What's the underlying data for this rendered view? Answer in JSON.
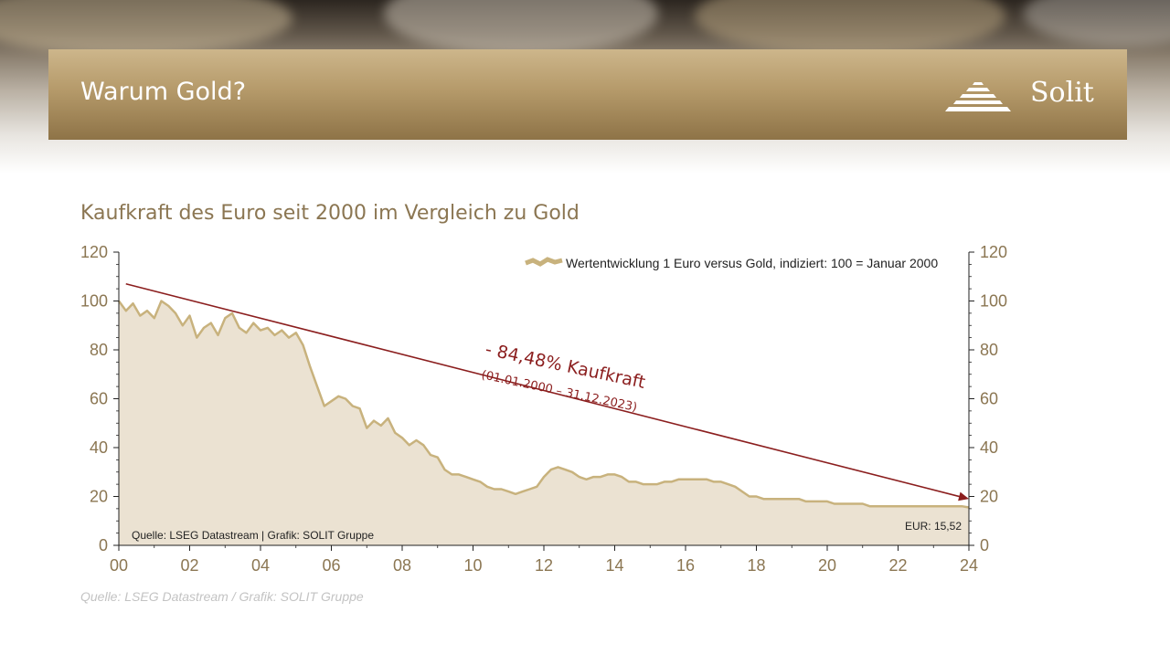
{
  "header": {
    "title": "Warum Gold?",
    "logo_text": "Solit",
    "accent": "#b59a6a"
  },
  "subtitle": "Kaufkraft des Euro seit 2000 im Vergleich zu Gold",
  "footer": {
    "source": "Quelle: LSEG Datastream / Grafik: SOLIT Gruppe"
  },
  "chart_data": {
    "type": "area",
    "legend": "Wertentwicklung 1 Euro versus Gold, indiziert: 100 = Januar 2000",
    "legend_position": "top-right",
    "xlim": [
      0,
      24
    ],
    "ylim": [
      0,
      120
    ],
    "xticks": [
      "00",
      "02",
      "04",
      "06",
      "08",
      "10",
      "12",
      "14",
      "16",
      "18",
      "20",
      "22",
      "24"
    ],
    "yticks": [
      "0",
      "20",
      "40",
      "60",
      "80",
      "100",
      "120"
    ],
    "series": [
      {
        "color": "#c8b27d",
        "fill": "#ebe2d2",
        "x": [
          0,
          0.2,
          0.4,
          0.6,
          0.8,
          1.0,
          1.2,
          1.4,
          1.6,
          1.8,
          2.0,
          2.2,
          2.4,
          2.6,
          2.8,
          3.0,
          3.2,
          3.4,
          3.6,
          3.8,
          4.0,
          4.2,
          4.4,
          4.6,
          4.8,
          5.0,
          5.2,
          5.4,
          5.6,
          5.8,
          6.0,
          6.2,
          6.4,
          6.6,
          6.8,
          7.0,
          7.2,
          7.4,
          7.6,
          7.8,
          8.0,
          8.2,
          8.4,
          8.6,
          8.8,
          9.0,
          9.2,
          9.4,
          9.6,
          9.8,
          10.0,
          10.2,
          10.4,
          10.6,
          10.8,
          11.0,
          11.2,
          11.4,
          11.6,
          11.8,
          12.0,
          12.2,
          12.4,
          12.6,
          12.8,
          13.0,
          13.2,
          13.4,
          13.6,
          13.8,
          14.0,
          14.2,
          14.4,
          14.6,
          14.8,
          15.0,
          15.2,
          15.4,
          15.6,
          15.8,
          16.0,
          16.2,
          16.4,
          16.6,
          16.8,
          17.0,
          17.2,
          17.4,
          17.6,
          17.8,
          18.0,
          18.2,
          18.4,
          18.6,
          18.8,
          19.0,
          19.2,
          19.4,
          19.6,
          19.8,
          20.0,
          20.2,
          20.4,
          20.6,
          20.8,
          21.0,
          21.2,
          21.4,
          21.6,
          21.8,
          22.0,
          22.2,
          22.4,
          22.6,
          22.8,
          23.0,
          23.2,
          23.4,
          23.6,
          23.8,
          24.0
        ],
        "values": [
          100,
          96,
          99,
          94,
          96,
          93,
          100,
          98,
          95,
          90,
          94,
          85,
          89,
          91,
          86,
          93,
          95,
          89,
          87,
          91,
          88,
          89,
          86,
          88,
          85,
          87,
          82,
          73,
          65,
          57,
          59,
          61,
          60,
          57,
          56,
          48,
          51,
          49,
          52,
          46,
          44,
          41,
          43,
          41,
          37,
          36,
          31,
          29,
          29,
          28,
          27,
          26,
          24,
          23,
          23,
          22,
          21,
          22,
          23,
          24,
          28,
          31,
          32,
          31,
          30,
          28,
          27,
          28,
          28,
          29,
          29,
          28,
          26,
          26,
          25,
          25,
          25,
          26,
          26,
          27,
          27,
          27,
          27,
          27,
          26,
          26,
          25,
          24,
          22,
          20,
          20,
          19,
          19,
          19,
          19,
          19,
          19,
          18,
          18,
          18,
          18,
          17,
          17,
          17,
          17,
          17,
          16,
          16,
          16,
          16,
          16,
          16,
          16,
          16,
          16,
          16,
          16,
          16,
          16,
          16,
          15.52
        ]
      }
    ],
    "trend": {
      "from": [
        0.2,
        107
      ],
      "to": [
        24,
        19
      ]
    },
    "annotation": {
      "main": "- 84,48% Kaufkraft",
      "sub": "(01.01.2000 – 31.12.2023)",
      "color": "#8b1e1e"
    },
    "inner_source": "Quelle: LSEG Datastream | Grafik: SOLIT Gruppe",
    "end_label": "EUR: 15,52"
  }
}
